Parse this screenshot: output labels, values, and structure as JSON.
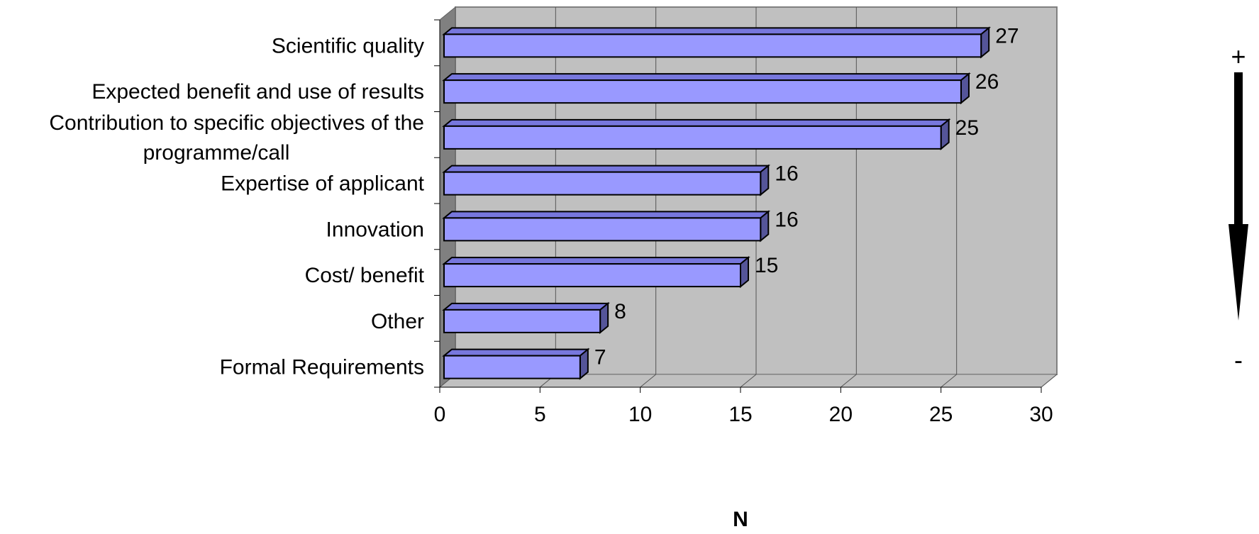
{
  "chart_data": {
    "type": "bar",
    "orientation": "horizontal",
    "three_d": true,
    "categories": [
      "Scientific quality",
      "Expected benefit and use of results",
      "Contribution to specific objectives of the programme/call",
      "Expertise of applicant",
      "Innovation",
      "Cost/ benefit",
      "Other",
      "Formal Requirements"
    ],
    "category_lines": [
      [
        "Scientific quality"
      ],
      [
        "Expected benefit and use of results"
      ],
      [
        "Contribution to specific objectives of the",
        "programme/call"
      ],
      [
        "Expertise of applicant"
      ],
      [
        "Innovation"
      ],
      [
        "Cost/ benefit"
      ],
      [
        "Other"
      ],
      [
        "Formal Requirements"
      ]
    ],
    "values": [
      27,
      26,
      25,
      16,
      16,
      15,
      8,
      7
    ],
    "data_labels": [
      "27",
      "26",
      "25",
      "16",
      "16",
      "15",
      "8",
      "7"
    ],
    "xlabel": "N",
    "xlim": [
      0,
      30
    ],
    "xticks": [
      "0",
      "5",
      "10",
      "15",
      "20",
      "25",
      "30"
    ],
    "grid": true,
    "colors": {
      "bar_face": "#9999ff",
      "bar_top": "#7777dd",
      "bar_side": "#555599",
      "plot_back": "#c0c0c0",
      "plot_wall": "#808080",
      "plot_floor": "#c0c0c0"
    },
    "scale_indicator": {
      "top": "+",
      "bottom": "-"
    }
  }
}
